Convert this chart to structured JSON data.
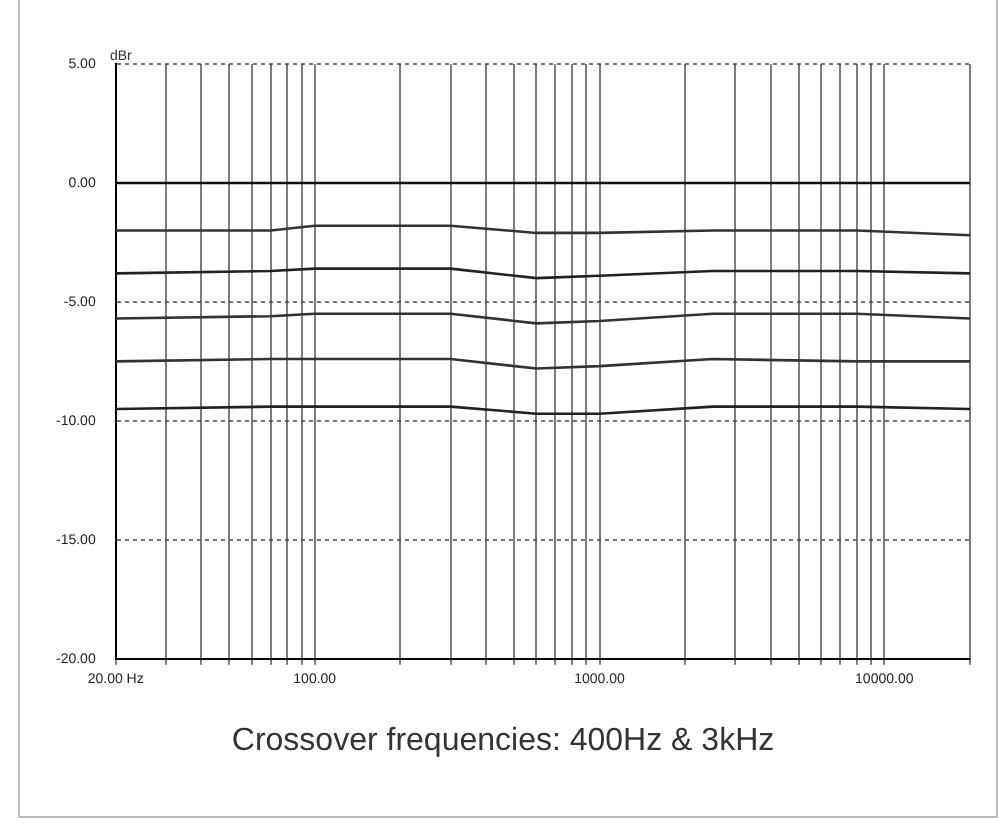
{
  "chart_data": {
    "type": "line",
    "title": "Crossover frequencies: 400Hz & 3kHz",
    "ylabel": "dBr",
    "log": "x",
    "grid": true,
    "legend": false,
    "marker": "none",
    "line_style": "solid",
    "xlim": [
      20,
      20000
    ],
    "ylim": [
      -20,
      5
    ],
    "xticks": [
      {
        "value": 20,
        "label": "20.00 Hz"
      },
      {
        "value": 30,
        "label": null
      },
      {
        "value": 40,
        "label": null
      },
      {
        "value": 50,
        "label": null
      },
      {
        "value": 60,
        "label": null
      },
      {
        "value": 70,
        "label": null
      },
      {
        "value": 80,
        "label": null
      },
      {
        "value": 90,
        "label": null
      },
      {
        "value": 100,
        "label": "100.00"
      },
      {
        "value": 200,
        "label": null
      },
      {
        "value": 300,
        "label": null
      },
      {
        "value": 400,
        "label": null
      },
      {
        "value": 500,
        "label": null
      },
      {
        "value": 600,
        "label": null
      },
      {
        "value": 700,
        "label": null
      },
      {
        "value": 800,
        "label": null
      },
      {
        "value": 900,
        "label": null
      },
      {
        "value": 1000,
        "label": "1000.00"
      },
      {
        "value": 2000,
        "label": null
      },
      {
        "value": 3000,
        "label": null
      },
      {
        "value": 4000,
        "label": null
      },
      {
        "value": 5000,
        "label": null
      },
      {
        "value": 6000,
        "label": null
      },
      {
        "value": 7000,
        "label": null
      },
      {
        "value": 8000,
        "label": null
      },
      {
        "value": 9000,
        "label": null
      },
      {
        "value": 10000,
        "label": "10000.00"
      },
      {
        "value": 20000,
        "label": null
      }
    ],
    "yticks": [
      {
        "value": 5,
        "label": "5.00"
      },
      {
        "value": 0,
        "label": "0.00"
      },
      {
        "value": -5,
        "label": "-5.00"
      },
      {
        "value": -10,
        "label": "-10.00"
      },
      {
        "value": -15,
        "label": "-15.00"
      },
      {
        "value": -20,
        "label": "-20.00"
      }
    ],
    "x": [
      20,
      70,
      100,
      300,
      600,
      1000,
      2500,
      8000,
      20000
    ],
    "series": [
      {
        "color": "#111111",
        "values": [
          0,
          0,
          0,
          0,
          0,
          0,
          0,
          0,
          0
        ]
      },
      {
        "color": "#333333",
        "values": [
          -2.0,
          -2.0,
          -1.8,
          -1.8,
          -2.1,
          -2.1,
          -2.0,
          -2.0,
          -2.2
        ]
      },
      {
        "color": "#222222",
        "values": [
          -3.8,
          -3.7,
          -3.6,
          -3.6,
          -4.0,
          -3.9,
          -3.7,
          -3.7,
          -3.8
        ]
      },
      {
        "color": "#333333",
        "values": [
          -5.7,
          -5.6,
          -5.5,
          -5.5,
          -5.9,
          -5.8,
          -5.5,
          -5.5,
          -5.7
        ]
      },
      {
        "color": "#333333",
        "values": [
          -7.5,
          -7.4,
          -7.4,
          -7.4,
          -7.8,
          -7.7,
          -7.4,
          -7.5,
          -7.5
        ]
      },
      {
        "color": "#222222",
        "values": [
          -9.5,
          -9.4,
          -9.4,
          -9.4,
          -9.7,
          -9.7,
          -9.4,
          -9.4,
          -9.5
        ]
      }
    ]
  }
}
